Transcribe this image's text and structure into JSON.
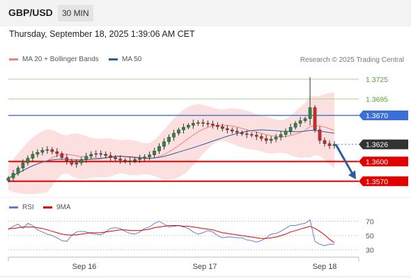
{
  "header": {
    "symbol": "GBP/USD",
    "timeframe": "30 MIN"
  },
  "timestamp": "Thursday, September 18, 2025 1:39:06 AM CET",
  "legend": {
    "bollinger_label": "MA 20 + Bollinger Bands",
    "ma50_label": "MA 50",
    "bollinger_color": "#f08080",
    "ma50_color": "#2b5c9e"
  },
  "credit": "Research © 2025 Trading Central",
  "rsi_legend": {
    "rsi_label": "RSI",
    "ma_label": "9MA",
    "rsi_color": "#5b7fd6",
    "ma_color": "#e00000"
  },
  "chart_data": [
    {
      "type": "candlestick",
      "price_axis": [
        1.3725,
        1.3695,
        1.367,
        1.3626,
        1.36,
        1.357
      ],
      "ylim": [
        1.3555,
        1.3745
      ],
      "x_labels": [
        "Sep 16",
        "Sep 17",
        "Sep 18"
      ],
      "levels": [
        {
          "label": "1.3725",
          "value": 1.3725,
          "kind": "resistance",
          "color": "#5aa02c"
        },
        {
          "label": "1.3695",
          "value": 1.3695,
          "kind": "resistance",
          "color": "#5aa02c"
        },
        {
          "label": "1.3670",
          "value": 1.367,
          "kind": "pivot",
          "color": "#3a6fd8"
        },
        {
          "label": "1.3626",
          "value": 1.3626,
          "kind": "last",
          "color": "#333333"
        },
        {
          "label": "1.3600",
          "value": 1.36,
          "kind": "support",
          "color": "#e00000"
        },
        {
          "label": "1.3570",
          "value": 1.357,
          "kind": "support",
          "color": "#e00000"
        }
      ],
      "close_series": [
        1.3575,
        1.3582,
        1.359,
        1.3598,
        1.3605,
        1.3611,
        1.3614,
        1.3617,
        1.3618,
        1.3615,
        1.3612,
        1.3606,
        1.3601,
        1.3596,
        1.3598,
        1.3603,
        1.3608,
        1.3611,
        1.3612,
        1.3611,
        1.3609,
        1.3606,
        1.3604,
        1.3602,
        1.36,
        1.3601,
        1.3603,
        1.3605,
        1.3607,
        1.361,
        1.3616,
        1.3623,
        1.363,
        1.3637,
        1.3643,
        1.3648,
        1.3652,
        1.3655,
        1.3658,
        1.3659,
        1.3658,
        1.3657,
        1.3655,
        1.3653,
        1.365,
        1.3648,
        1.3646,
        1.3644,
        1.3642,
        1.3641,
        1.364,
        1.3638,
        1.3635,
        1.3632,
        1.3634,
        1.3637,
        1.3641,
        1.3646,
        1.3652,
        1.3658,
        1.3662,
        1.3665,
        1.3682,
        1.3648,
        1.3632,
        1.3627,
        1.3624,
        1.3626
      ],
      "rsi": {
        "levels": [
          70,
          50,
          30
        ],
        "ylim": [
          20,
          80
        ],
        "rsi_values": [
          58,
          63,
          66,
          60,
          67,
          64,
          58,
          55,
          52,
          50,
          47,
          43,
          42,
          50,
          55,
          56,
          55,
          53,
          52,
          51,
          55,
          60,
          61,
          60,
          56,
          53,
          52,
          55,
          60,
          62,
          67,
          70,
          66,
          62,
          63,
          64,
          62,
          60,
          55,
          52,
          54,
          57,
          55,
          50,
          47,
          48,
          48,
          47,
          47,
          44,
          43,
          41,
          43,
          47,
          52,
          53,
          56,
          60,
          64,
          64,
          66,
          67,
          72,
          42,
          38,
          36,
          38,
          38
        ],
        "ma_values": [
          60,
          60,
          61,
          62,
          62,
          62,
          61,
          60,
          58,
          56,
          54,
          52,
          51,
          51,
          51,
          52,
          53,
          54,
          54,
          54,
          55,
          56,
          57,
          58,
          58,
          57,
          57,
          57,
          58,
          59,
          61,
          62,
          63,
          64,
          64,
          64,
          63,
          63,
          62,
          61,
          60,
          59,
          58,
          56,
          54,
          53,
          52,
          51,
          50,
          49,
          48,
          47,
          46,
          46,
          47,
          48,
          50,
          52,
          55,
          57,
          59,
          61,
          63,
          60,
          56,
          51,
          45,
          40
        ]
      }
    }
  ]
}
